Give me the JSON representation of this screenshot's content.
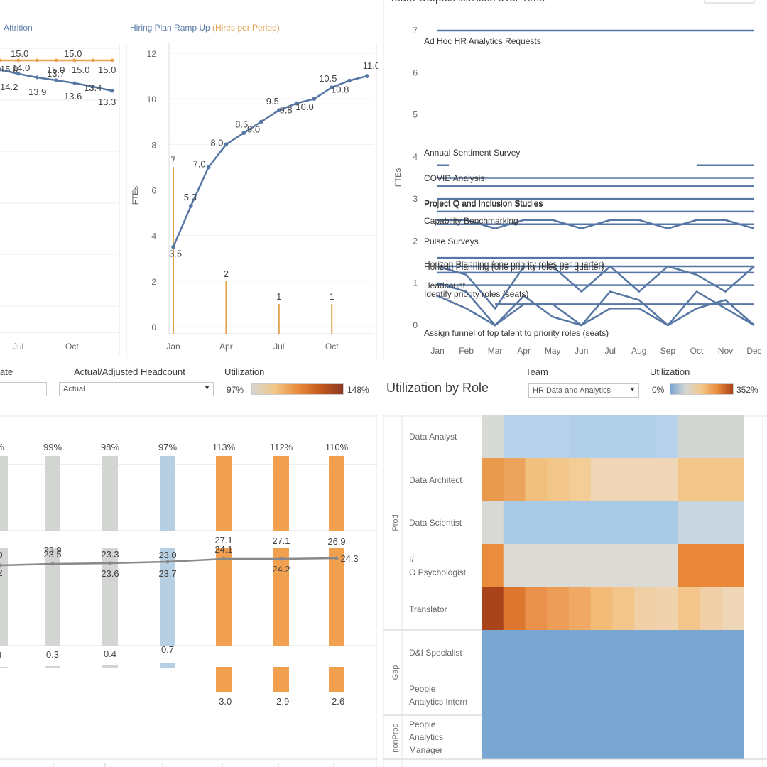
{
  "top_left": {
    "title": "Attrition",
    "ticks_x": [
      "Jul",
      "Oct"
    ],
    "flat_labels": [
      "15.0",
      "15.0",
      "15.0",
      "15.0",
      "15.0",
      "15.0"
    ],
    "overlap_labels": [
      "14.0",
      "13.7"
    ],
    "decline_labels": [
      "14.2",
      "13.9",
      "13.6",
      "13.4",
      "13.3"
    ]
  },
  "hiring": {
    "title_main": "Hiring Plan Ramp Up ",
    "title_hl": "(Hires per Period)",
    "y_label": "FTEs",
    "y_ticks": [
      "0",
      "2",
      "4",
      "6",
      "8",
      "10",
      "12"
    ],
    "x_ticks": [
      "Jan",
      "Apr",
      "Jul",
      "Oct"
    ],
    "line_points": [
      3.5,
      5.3,
      7.0,
      8.0,
      8.5,
      9.0,
      9.5,
      9.8,
      10.0,
      10.5,
      10.8,
      11.0
    ],
    "line_labels": [
      "3.5",
      "5.3",
      "7.0",
      "8.0",
      "8.5",
      "9.0",
      "9.5",
      "9.8",
      "10.0",
      "10.5",
      "10.8",
      "11.0"
    ],
    "hires": [
      7,
      2,
      1,
      1
    ],
    "hire_labels": [
      "7",
      "2",
      "1",
      "1"
    ]
  },
  "activities": {
    "title": "Team Output/Activities over Time",
    "y_label": "FTEs",
    "y_ticks": [
      "0",
      "1",
      "2",
      "3",
      "4",
      "5",
      "6",
      "7"
    ],
    "x_ticks": [
      "Jan",
      "Feb",
      "Mar",
      "Apr",
      "May",
      "Jun",
      "Jul",
      "Aug",
      "Sep",
      "Oct",
      "Nov",
      "Dec"
    ],
    "labels": [
      "Ad Hoc HR Analytics Requests",
      "Annual Sentiment Survey",
      "COVID Analysis",
      "Project Q and Inclusion Studies",
      "Capability Benchmarking",
      "Pulse Surveys",
      "Horizon Planning (one priority roles per quarter)",
      "Headcount",
      "Identify priority roles (seats)",
      "Assign funnel of top talent to priority roles (seats)"
    ]
  },
  "controls": {
    "date_label": "ate",
    "headcount_label": "Actual/Adjusted Headcount",
    "headcount_value": "Actual",
    "utilization_label_1": "Utilization",
    "util_min_1": "97%",
    "util_max_1": "148%",
    "team_label": "Team",
    "team_value": "HR Data and Analytics",
    "utilization_label_2": "Utilization",
    "util_min_2": "0%",
    "util_max_2": "352%"
  },
  "utilization_bars": {
    "percent_labels": [
      "%",
      "99%",
      "98%",
      "97%",
      "113%",
      "112%",
      "110%"
    ],
    "mid_labels_top": [
      "0",
      "23.5",
      "23.3",
      "23.0",
      "27.1",
      "27.1",
      "26.9"
    ],
    "mid_labels_under": [
      "",
      "23.9",
      "",
      "",
      "24.1",
      "",
      ""
    ],
    "mid_labels_bottom": [
      "2",
      "",
      "23.6",
      "23.7",
      "",
      "24.2",
      "24.3"
    ],
    "gap_labels": [
      "1",
      "0.3",
      "0.4",
      "0.7",
      "-3.0",
      "-2.9",
      "-2.6"
    ],
    "utilization_values": [
      0,
      99,
      98,
      97,
      113,
      112,
      110
    ]
  },
  "heatmap": {
    "title": "Utilization by Role",
    "groups": [
      "Prod",
      "Gap",
      "nonProd"
    ],
    "roles": [
      "Data Analyst",
      "Data Architect",
      "Data Scientist",
      "I/O Psychologist",
      "Translator",
      "D&I Specialist",
      "People Analytics Intern",
      "People Analytics Manager"
    ],
    "colors": {
      "blue_dark": "#7aa6d2",
      "blue_light": "#b3d1ea",
      "grey": "#d8d8d4",
      "orange_light": "#f2c688",
      "orange": "#ea9a4c",
      "orange_dark": "#c45a1f",
      "brown": "#a9441a"
    }
  }
}
